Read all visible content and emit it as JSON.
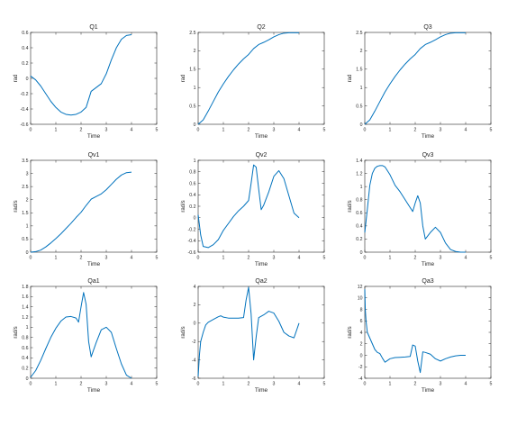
{
  "figure": {
    "background": "#ffffff",
    "line_color": "#0072BD",
    "axis_color": "#262626"
  },
  "chart_data": [
    {
      "type": "line",
      "title": "Q1",
      "xlabel": "Time",
      "ylabel": "rad",
      "xlim": [
        0,
        5
      ],
      "ylim": [
        -0.6,
        0.6
      ],
      "xticks": [
        0,
        1,
        2,
        3,
        4,
        5
      ],
      "yticks": [
        -0.6,
        -0.4,
        -0.2,
        0,
        0.2,
        0.4,
        0.6
      ],
      "ytick_labels": [
        "-0.6",
        "-0.4",
        "-0.2",
        "0",
        "0.2",
        "0.4",
        "0.6"
      ],
      "series": [
        {
          "x": [
            0,
            0.2,
            0.4,
            0.6,
            0.8,
            1.0,
            1.2,
            1.4,
            1.6,
            1.8,
            2.0,
            2.2,
            2.4,
            2.6,
            2.8,
            3.0,
            3.2,
            3.4,
            3.6,
            3.8,
            4.0
          ],
          "y": [
            0.03,
            -0.02,
            -0.1,
            -0.2,
            -0.3,
            -0.38,
            -0.44,
            -0.47,
            -0.48,
            -0.47,
            -0.44,
            -0.38,
            -0.17,
            -0.12,
            -0.07,
            0.06,
            0.24,
            0.4,
            0.51,
            0.56,
            0.57
          ]
        }
      ]
    },
    {
      "type": "line",
      "title": "Q2",
      "xlabel": "Time",
      "ylabel": "rad",
      "xlim": [
        0,
        5
      ],
      "ylim": [
        0,
        2.5
      ],
      "xticks": [
        0,
        1,
        2,
        3,
        4,
        5
      ],
      "yticks": [
        0,
        0.5,
        1,
        1.5,
        2,
        2.5
      ],
      "ytick_labels": [
        "0",
        "0.5",
        "1",
        "1.5",
        "2",
        "2.5"
      ],
      "series": [
        {
          "x": [
            0,
            0.2,
            0.4,
            0.6,
            0.8,
            1.0,
            1.2,
            1.4,
            1.6,
            1.8,
            2.0,
            2.2,
            2.4,
            2.6,
            2.8,
            3.0,
            3.2,
            3.4,
            3.6,
            3.8,
            4.0
          ],
          "y": [
            0,
            0.12,
            0.36,
            0.62,
            0.88,
            1.1,
            1.3,
            1.48,
            1.64,
            1.78,
            1.9,
            2.06,
            2.17,
            2.23,
            2.3,
            2.38,
            2.44,
            2.48,
            2.49,
            2.49,
            2.49
          ]
        }
      ]
    },
    {
      "type": "line",
      "title": "Q3",
      "xlabel": "Time",
      "ylabel": "rad",
      "xlim": [
        0,
        5
      ],
      "ylim": [
        0,
        2.5
      ],
      "xticks": [
        0,
        1,
        2,
        3,
        4,
        5
      ],
      "yticks": [
        0,
        0.5,
        1,
        1.5,
        2,
        2.5
      ],
      "ytick_labels": [
        "0",
        "0.5",
        "1",
        "1.5",
        "2",
        "2.5"
      ],
      "series": [
        {
          "x": [
            0,
            0.2,
            0.4,
            0.6,
            0.8,
            1.0,
            1.2,
            1.4,
            1.6,
            1.8,
            2.0,
            2.2,
            2.4,
            2.6,
            2.8,
            3.0,
            3.2,
            3.4,
            3.6,
            3.8,
            4.0
          ],
          "y": [
            0,
            0.12,
            0.36,
            0.62,
            0.88,
            1.1,
            1.3,
            1.48,
            1.64,
            1.78,
            1.9,
            2.06,
            2.17,
            2.23,
            2.3,
            2.38,
            2.44,
            2.48,
            2.49,
            2.49,
            2.49
          ]
        }
      ]
    },
    {
      "type": "line",
      "title": "Qv1",
      "xlabel": "Time",
      "ylabel": "rad/s",
      "xlim": [
        0,
        5
      ],
      "ylim": [
        0,
        3.5
      ],
      "xticks": [
        0,
        1,
        2,
        3,
        4,
        5
      ],
      "yticks": [
        0,
        0.5,
        1,
        1.5,
        2,
        2.5,
        3,
        3.5
      ],
      "ytick_labels": [
        "0",
        "0.5",
        "1",
        "1.5",
        "2",
        "2.5",
        "3",
        "3.5"
      ],
      "series": [
        {
          "x": [
            0,
            0.2,
            0.4,
            0.6,
            0.8,
            1.0,
            1.2,
            1.4,
            1.6,
            1.8,
            2.0,
            2.2,
            2.4,
            2.6,
            2.8,
            3.0,
            3.2,
            3.4,
            3.6,
            3.8,
            4.0
          ],
          "y": [
            0,
            0.02,
            0.08,
            0.2,
            0.35,
            0.52,
            0.7,
            0.9,
            1.1,
            1.32,
            1.52,
            1.78,
            2.02,
            2.12,
            2.22,
            2.38,
            2.58,
            2.78,
            2.94,
            3.03,
            3.05
          ]
        }
      ]
    },
    {
      "type": "line",
      "title": "Qv2",
      "xlabel": "Time",
      "ylabel": "rad/s",
      "xlim": [
        0,
        5
      ],
      "ylim": [
        -0.6,
        1
      ],
      "xticks": [
        0,
        1,
        2,
        3,
        4,
        5
      ],
      "yticks": [
        -0.6,
        -0.4,
        -0.2,
        0,
        0.2,
        0.4,
        0.6,
        0.8,
        1
      ],
      "ytick_labels": [
        "-0.6",
        "-0.4",
        "-0.2",
        "0",
        "0.2",
        "0.4",
        "0.6",
        "0.8",
        "1"
      ],
      "series": [
        {
          "x": [
            0,
            0.1,
            0.2,
            0.4,
            0.6,
            0.8,
            1.0,
            1.2,
            1.4,
            1.6,
            1.8,
            2.0,
            2.1,
            2.2,
            2.3,
            2.4,
            2.5,
            2.6,
            2.8,
            3.0,
            3.2,
            3.4,
            3.6,
            3.8,
            4.0
          ],
          "y": [
            0.05,
            -0.3,
            -0.5,
            -0.52,
            -0.47,
            -0.38,
            -0.22,
            -0.1,
            0.02,
            0.12,
            0.2,
            0.3,
            0.6,
            0.92,
            0.88,
            0.5,
            0.14,
            0.22,
            0.45,
            0.72,
            0.82,
            0.68,
            0.38,
            0.08,
            0
          ]
        }
      ]
    },
    {
      "type": "line",
      "title": "Qv3",
      "xlabel": "Time",
      "ylabel": "rad/s",
      "xlim": [
        0,
        5
      ],
      "ylim": [
        0,
        1.4
      ],
      "xticks": [
        0,
        1,
        2,
        3,
        4,
        5
      ],
      "yticks": [
        0,
        0.2,
        0.4,
        0.6,
        0.8,
        1,
        1.2,
        1.4
      ],
      "ytick_labels": [
        "0",
        "0.2",
        "0.4",
        "0.6",
        "0.8",
        "1",
        "1.2",
        "1.4"
      ],
      "series": [
        {
          "x": [
            0,
            0.1,
            0.2,
            0.3,
            0.4,
            0.5,
            0.6,
            0.7,
            0.8,
            1.0,
            1.2,
            1.4,
            1.6,
            1.8,
            1.9,
            2.0,
            2.1,
            2.2,
            2.3,
            2.4,
            2.6,
            2.8,
            3.0,
            3.2,
            3.4,
            3.6,
            3.8,
            4.0
          ],
          "y": [
            0.3,
            0.65,
            1.02,
            1.2,
            1.28,
            1.31,
            1.32,
            1.32,
            1.3,
            1.18,
            1.02,
            0.92,
            0.8,
            0.68,
            0.62,
            0.75,
            0.86,
            0.75,
            0.4,
            0.2,
            0.3,
            0.38,
            0.3,
            0.14,
            0.04,
            0.01,
            0,
            0
          ]
        }
      ]
    },
    {
      "type": "line",
      "title": "Qa1",
      "xlabel": "Time",
      "ylabel": "rad/s",
      "xlim": [
        0,
        5
      ],
      "ylim": [
        0,
        1.8
      ],
      "xticks": [
        0,
        1,
        2,
        3,
        4,
        5
      ],
      "yticks": [
        0,
        0.2,
        0.4,
        0.6,
        0.8,
        1,
        1.2,
        1.4,
        1.6,
        1.8
      ],
      "ytick_labels": [
        "0",
        "0.2",
        "0.4",
        "0.6",
        "0.8",
        "1",
        "1.2",
        "1.4",
        "1.6",
        "1.8"
      ],
      "series": [
        {
          "x": [
            0,
            0.2,
            0.4,
            0.6,
            0.8,
            1.0,
            1.2,
            1.4,
            1.6,
            1.8,
            1.9,
            2.0,
            2.1,
            2.2,
            2.3,
            2.4,
            2.6,
            2.8,
            3.0,
            3.2,
            3.4,
            3.6,
            3.8,
            4.0
          ],
          "y": [
            0.02,
            0.15,
            0.35,
            0.58,
            0.8,
            0.98,
            1.12,
            1.2,
            1.21,
            1.18,
            1.1,
            1.4,
            1.68,
            1.45,
            0.72,
            0.42,
            0.7,
            0.95,
            1.0,
            0.9,
            0.58,
            0.28,
            0.06,
            0
          ]
        }
      ]
    },
    {
      "type": "line",
      "title": "Qa2",
      "xlabel": "Time",
      "ylabel": "rad/s",
      "xlim": [
        0,
        5
      ],
      "ylim": [
        -6,
        4
      ],
      "xticks": [
        0,
        1,
        2,
        3,
        4,
        5
      ],
      "yticks": [
        -6,
        -4,
        -2,
        0,
        2,
        4
      ],
      "ytick_labels": [
        "-6",
        "-4",
        "-2",
        "0",
        "2",
        "4"
      ],
      "series": [
        {
          "x": [
            0,
            0.05,
            0.1,
            0.2,
            0.3,
            0.4,
            0.6,
            0.8,
            0.9,
            1.0,
            1.2,
            1.4,
            1.6,
            1.8,
            1.9,
            2.0,
            2.1,
            2.2,
            2.3,
            2.4,
            2.6,
            2.8,
            3.0,
            3.2,
            3.4,
            3.6,
            3.8,
            4.0
          ],
          "y": [
            -5.8,
            -3.5,
            -2.0,
            -1.0,
            -0.2,
            0.1,
            0.4,
            0.7,
            0.8,
            0.65,
            0.55,
            0.55,
            0.55,
            0.6,
            2.5,
            3.9,
            1.0,
            -4.0,
            -1.5,
            0.6,
            0.9,
            1.3,
            1.1,
            0.2,
            -1.0,
            -1.4,
            -1.6,
            0
          ]
        }
      ]
    },
    {
      "type": "line",
      "title": "Qa3",
      "xlabel": "Time",
      "ylabel": "rad/s",
      "xlim": [
        0,
        5
      ],
      "ylim": [
        -4,
        12
      ],
      "xticks": [
        0,
        1,
        2,
        3,
        4,
        5
      ],
      "yticks": [
        -4,
        -2,
        0,
        2,
        4,
        6,
        8,
        10,
        12
      ],
      "ytick_labels": [
        "-4",
        "-2",
        "0",
        "2",
        "4",
        "6",
        "8",
        "10",
        "12"
      ],
      "series": [
        {
          "x": [
            0,
            0.02,
            0.05,
            0.1,
            0.2,
            0.3,
            0.4,
            0.5,
            0.6,
            0.7,
            0.8,
            1.0,
            1.2,
            1.4,
            1.6,
            1.8,
            1.9,
            2.0,
            2.1,
            2.2,
            2.3,
            2.4,
            2.6,
            2.8,
            3.0,
            3.2,
            3.4,
            3.6,
            3.8,
            4.0
          ],
          "y": [
            11.5,
            8.0,
            6.0,
            4.0,
            3.0,
            2.0,
            1.0,
            0.5,
            0.3,
            -0.5,
            -1.2,
            -0.6,
            -0.4,
            -0.35,
            -0.3,
            -0.2,
            1.8,
            1.6,
            -1.0,
            -3.0,
            0.6,
            0.5,
            0.2,
            -0.6,
            -1.0,
            -0.6,
            -0.3,
            -0.1,
            0,
            0
          ]
        }
      ]
    }
  ]
}
